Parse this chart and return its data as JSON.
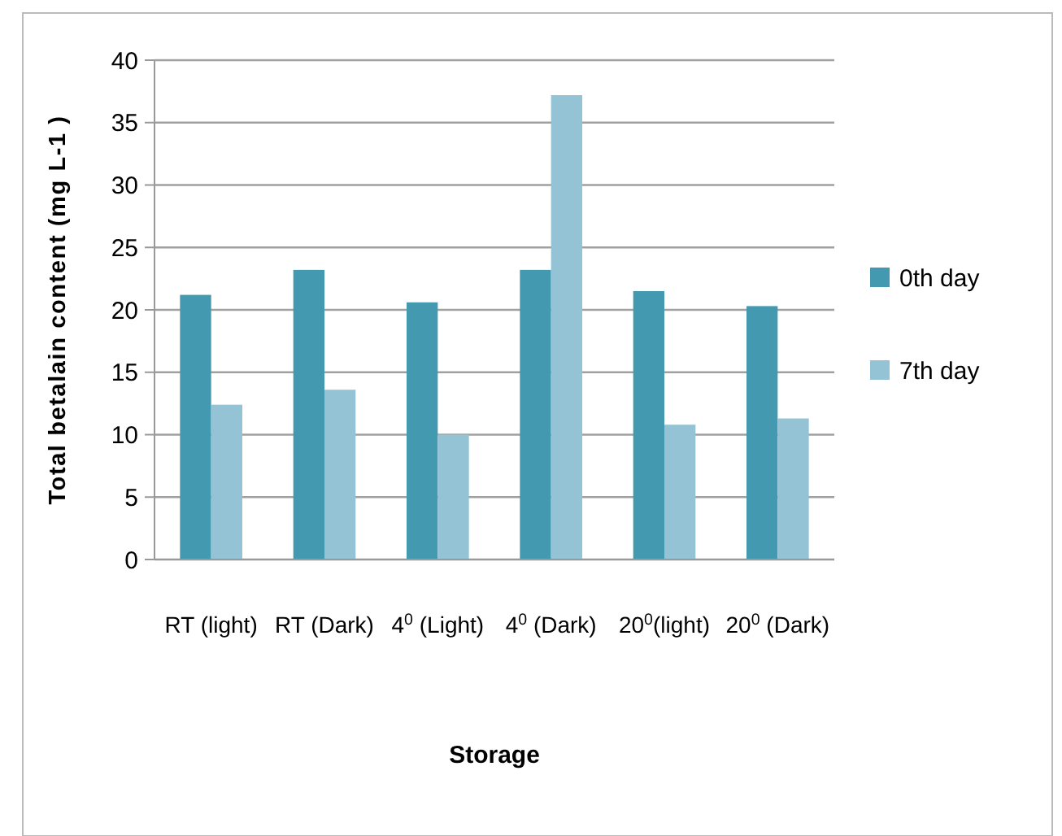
{
  "chart_data": {
    "type": "bar",
    "xlabel": "Storage",
    "ylabel": "Total betalain content (mg L-1 )",
    "categories": [
      "RT (light)",
      "RT (Dark)",
      "4$^{0}$ (Light)",
      "4$^{0}$ (Dark)",
      "20$^{0}$(light)",
      "20$^{0}$ (Dark)"
    ],
    "series": [
      {
        "name": "0th day",
        "color": "#4399b0",
        "values": [
          21.2,
          23.2,
          20.6,
          23.2,
          21.5,
          20.3
        ]
      },
      {
        "name": "7th day",
        "color": "#93c3d5",
        "values": [
          12.4,
          13.6,
          10.0,
          37.2,
          10.8,
          11.3
        ]
      }
    ],
    "ylim": [
      0,
      40
    ],
    "yticks": [
      0,
      5,
      10,
      15,
      20,
      25,
      30,
      35,
      40
    ],
    "grid": "y",
    "legend": "right"
  }
}
